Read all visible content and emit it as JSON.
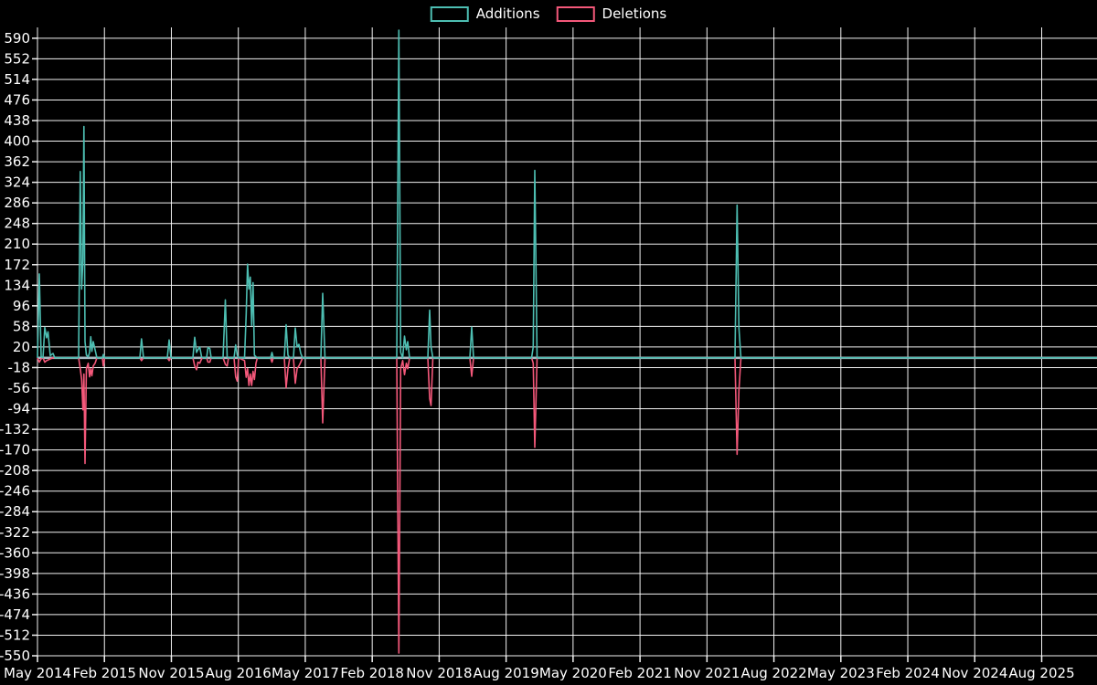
{
  "legend": {
    "additions_label": "Additions",
    "deletions_label": "Deletions"
  },
  "colors": {
    "background": "#000000",
    "additions": "#4dbeb2",
    "deletions": "#f4587a",
    "grid": "#ffffff",
    "text": "#ffffff",
    "zero_line": "#a5bcc4"
  },
  "chart_data": {
    "type": "line",
    "title": "",
    "xlabel": "",
    "ylabel": "",
    "grid": true,
    "legend_position": "top-center",
    "x_tick_labels": [
      "May 2014",
      "Feb 2015",
      "Nov 2015",
      "Aug 2016",
      "May 2017",
      "Feb 2018",
      "Nov 2018",
      "Aug 2019",
      "May 2020",
      "Feb 2021",
      "Nov 2021",
      "Aug 2022",
      "May 2023",
      "Feb 2024",
      "Nov 2024",
      "Aug 2025"
    ],
    "y_ticks": [
      590,
      552,
      514,
      476,
      438,
      400,
      362,
      324,
      286,
      248,
      210,
      172,
      134,
      96,
      58,
      20,
      -18,
      -56,
      -94,
      -132,
      -170,
      -208,
      -246,
      -284,
      -322,
      -360,
      -398,
      -436,
      -474,
      -512,
      -550
    ],
    "ylim": [
      -550,
      610
    ],
    "series_names": [
      "Additions",
      "Deletions"
    ],
    "points_format": "[x_position_px_along_time_axis, additions_value, deletions_value]",
    "points": [
      [
        41,
        0,
        0
      ],
      [
        43,
        155,
        -8
      ],
      [
        45,
        2,
        -2
      ],
      [
        47,
        0,
        0
      ],
      [
        49,
        56,
        -8
      ],
      [
        51,
        37,
        -5
      ],
      [
        52.5,
        48,
        -4
      ],
      [
        55,
        4,
        -2
      ],
      [
        58,
        8,
        0
      ],
      [
        60,
        0,
        0
      ],
      [
        86,
        0,
        0
      ],
      [
        87.8,
        344,
        -20
      ],
      [
        89.3,
        127,
        -40
      ],
      [
        90.7,
        180,
        -96
      ],
      [
        91.8,
        427,
        -30
      ],
      [
        93,
        30,
        -195
      ],
      [
        94.5,
        5,
        -20
      ],
      [
        96.5,
        2,
        -10
      ],
      [
        98,
        10,
        -35
      ],
      [
        99.3,
        39,
        -20
      ],
      [
        100.5,
        12,
        -33
      ],
      [
        102,
        30,
        -15
      ],
      [
        104,
        15,
        -10
      ],
      [
        106,
        0,
        0
      ],
      [
        112,
        0,
        0
      ],
      [
        113,
        6,
        -15
      ],
      [
        114.5,
        0,
        0
      ],
      [
        153,
        0,
        0
      ],
      [
        154.8,
        35,
        -5
      ],
      [
        157,
        0,
        0
      ],
      [
        183,
        0,
        0
      ],
      [
        185,
        33,
        -5
      ],
      [
        187,
        0,
        0
      ],
      [
        211,
        0,
        0
      ],
      [
        213,
        38,
        -15
      ],
      [
        215,
        10,
        -22
      ],
      [
        216.5,
        15,
        -8
      ],
      [
        218.5,
        20,
        -10
      ],
      [
        220.5,
        2,
        -2
      ],
      [
        222,
        0,
        0
      ],
      [
        226,
        0,
        0
      ],
      [
        227.5,
        19,
        -8
      ],
      [
        229.5,
        17,
        -8
      ],
      [
        231,
        0,
        0
      ],
      [
        244,
        0,
        0
      ],
      [
        246.5,
        107,
        -12
      ],
      [
        248.5,
        2,
        -15
      ],
      [
        250,
        0,
        0
      ],
      [
        256,
        0,
        0
      ],
      [
        257.8,
        24,
        -35
      ],
      [
        259.5,
        5,
        -43
      ],
      [
        261,
        0,
        0
      ],
      [
        267.5,
        0,
        -5
      ],
      [
        269.3,
        80,
        -36
      ],
      [
        270.8,
        173,
        -20
      ],
      [
        272.3,
        127,
        -51
      ],
      [
        273.8,
        149,
        -30
      ],
      [
        275.3,
        60,
        -51
      ],
      [
        276.8,
        139,
        -25
      ],
      [
        278.3,
        5,
        -40
      ],
      [
        280,
        2,
        -10
      ],
      [
        281.5,
        0,
        0
      ],
      [
        296,
        0,
        0
      ],
      [
        297.5,
        10,
        -8
      ],
      [
        299,
        0,
        0
      ],
      [
        311,
        0,
        0
      ],
      [
        313,
        61,
        -55
      ],
      [
        315,
        5,
        -20
      ],
      [
        317,
        0,
        0
      ],
      [
        321,
        0,
        0
      ],
      [
        323,
        55,
        -47
      ],
      [
        325,
        20,
        -20
      ],
      [
        327,
        25,
        -15
      ],
      [
        329,
        8,
        -8
      ],
      [
        331,
        0,
        0
      ],
      [
        351,
        0,
        0
      ],
      [
        353,
        119,
        -120
      ],
      [
        355.5,
        0,
        0
      ],
      [
        434,
        0,
        0
      ],
      [
        436.3,
        605,
        -545
      ],
      [
        438.3,
        10,
        -20
      ],
      [
        440.5,
        0,
        -5
      ],
      [
        442.5,
        40,
        -31
      ],
      [
        444.5,
        15,
        -10
      ],
      [
        446,
        30,
        -20
      ],
      [
        448,
        0,
        0
      ],
      [
        468,
        0,
        0
      ],
      [
        470,
        88,
        -75
      ],
      [
        471.5,
        20,
        -88
      ],
      [
        473.5,
        0,
        0
      ],
      [
        514,
        0,
        0
      ],
      [
        516,
        57,
        -34
      ],
      [
        518,
        0,
        0
      ],
      [
        581.5,
        0,
        0
      ],
      [
        583.3,
        20,
        -10
      ],
      [
        585,
        346,
        -165
      ],
      [
        587.5,
        0,
        0
      ],
      [
        804,
        0,
        0
      ],
      [
        806.3,
        282,
        -178
      ],
      [
        808.3,
        55,
        -60
      ],
      [
        810.5,
        0,
        0
      ],
      [
        1200,
        0,
        0
      ]
    ]
  }
}
